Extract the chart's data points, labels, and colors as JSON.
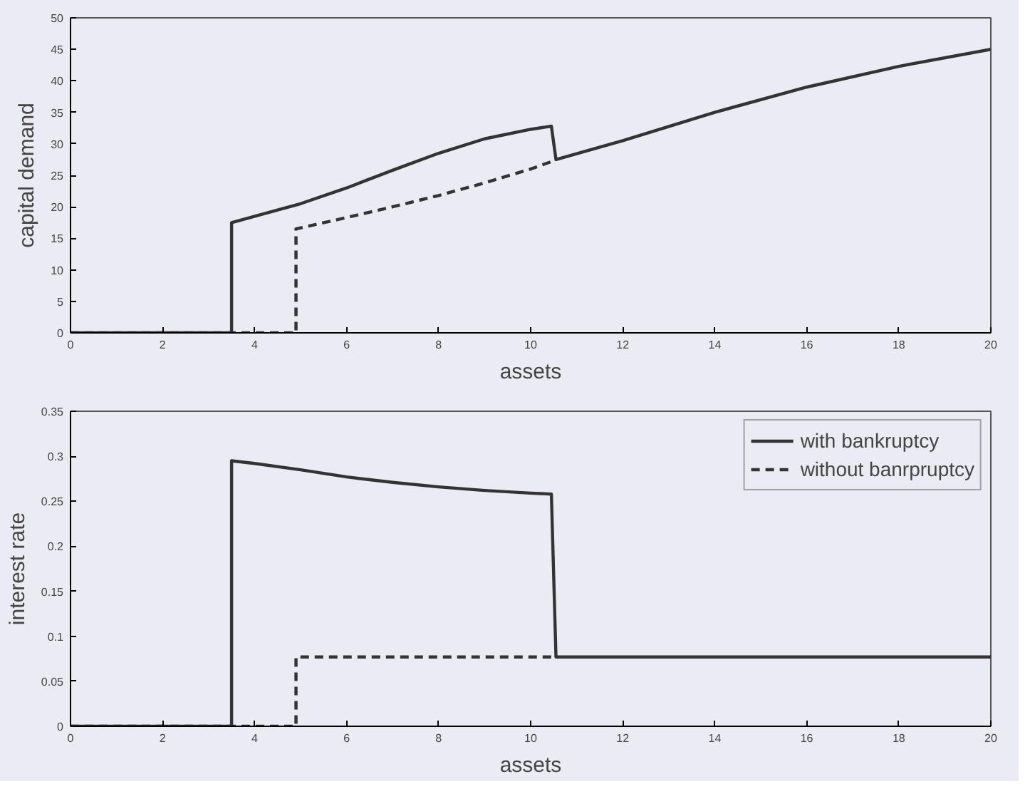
{
  "chart_data": [
    {
      "type": "line",
      "xlabel": "assets",
      "ylabel": "capital demand",
      "xlim": [
        0,
        20
      ],
      "ylim": [
        0,
        50
      ],
      "xticks": [
        0,
        2,
        4,
        6,
        8,
        10,
        12,
        14,
        16,
        18,
        20
      ],
      "yticks": [
        0,
        5,
        10,
        15,
        20,
        25,
        30,
        35,
        40,
        45,
        50
      ],
      "grid": false,
      "legend": false,
      "series": [
        {
          "color": "#333333",
          "line_style": "dashed",
          "x": [
            0,
            4.9,
            4.9,
            6,
            7,
            8,
            9,
            10,
            10.5
          ],
          "values": [
            0,
            0,
            16.5,
            18.3,
            20,
            21.8,
            23.8,
            26,
            27.3
          ]
        },
        {
          "color": "#333333",
          "line_style": "solid",
          "x": [
            0,
            3.5,
            3.5,
            4.5,
            5,
            6,
            7,
            8,
            9,
            10,
            10.45,
            10.55,
            12,
            14,
            16,
            18,
            20
          ],
          "values": [
            0,
            0,
            17.5,
            19.5,
            20.5,
            23,
            25.8,
            28.5,
            30.8,
            32.3,
            32.8,
            27.5,
            30.5,
            35,
            39,
            42.3,
            45
          ]
        }
      ]
    },
    {
      "type": "line",
      "xlabel": "assets",
      "ylabel": "interest rate",
      "xlim": [
        0,
        20
      ],
      "ylim": [
        0,
        0.35
      ],
      "xticks": [
        0,
        2,
        4,
        6,
        8,
        10,
        12,
        14,
        16,
        18,
        20
      ],
      "yticks": [
        0,
        0.05,
        0.1,
        0.15,
        0.2,
        0.25,
        0.3,
        0.35
      ],
      "grid": false,
      "legend": "top right",
      "series": [
        {
          "name": "without banrpruptcy",
          "color": "#333333",
          "line_style": "dashed",
          "x": [
            0,
            4.9,
            4.9,
            10.5
          ],
          "values": [
            0,
            0,
            0.077,
            0.077
          ]
        },
        {
          "name": "with bankruptcy",
          "color": "#333333",
          "line_style": "solid",
          "x": [
            0,
            3.5,
            3.5,
            4,
            5,
            6,
            7,
            8,
            9,
            10,
            10.45,
            10.55,
            20
          ],
          "values": [
            0,
            0,
            0.295,
            0.292,
            0.285,
            0.277,
            0.271,
            0.266,
            0.262,
            0.259,
            0.258,
            0.077,
            0.077
          ]
        }
      ]
    }
  ]
}
